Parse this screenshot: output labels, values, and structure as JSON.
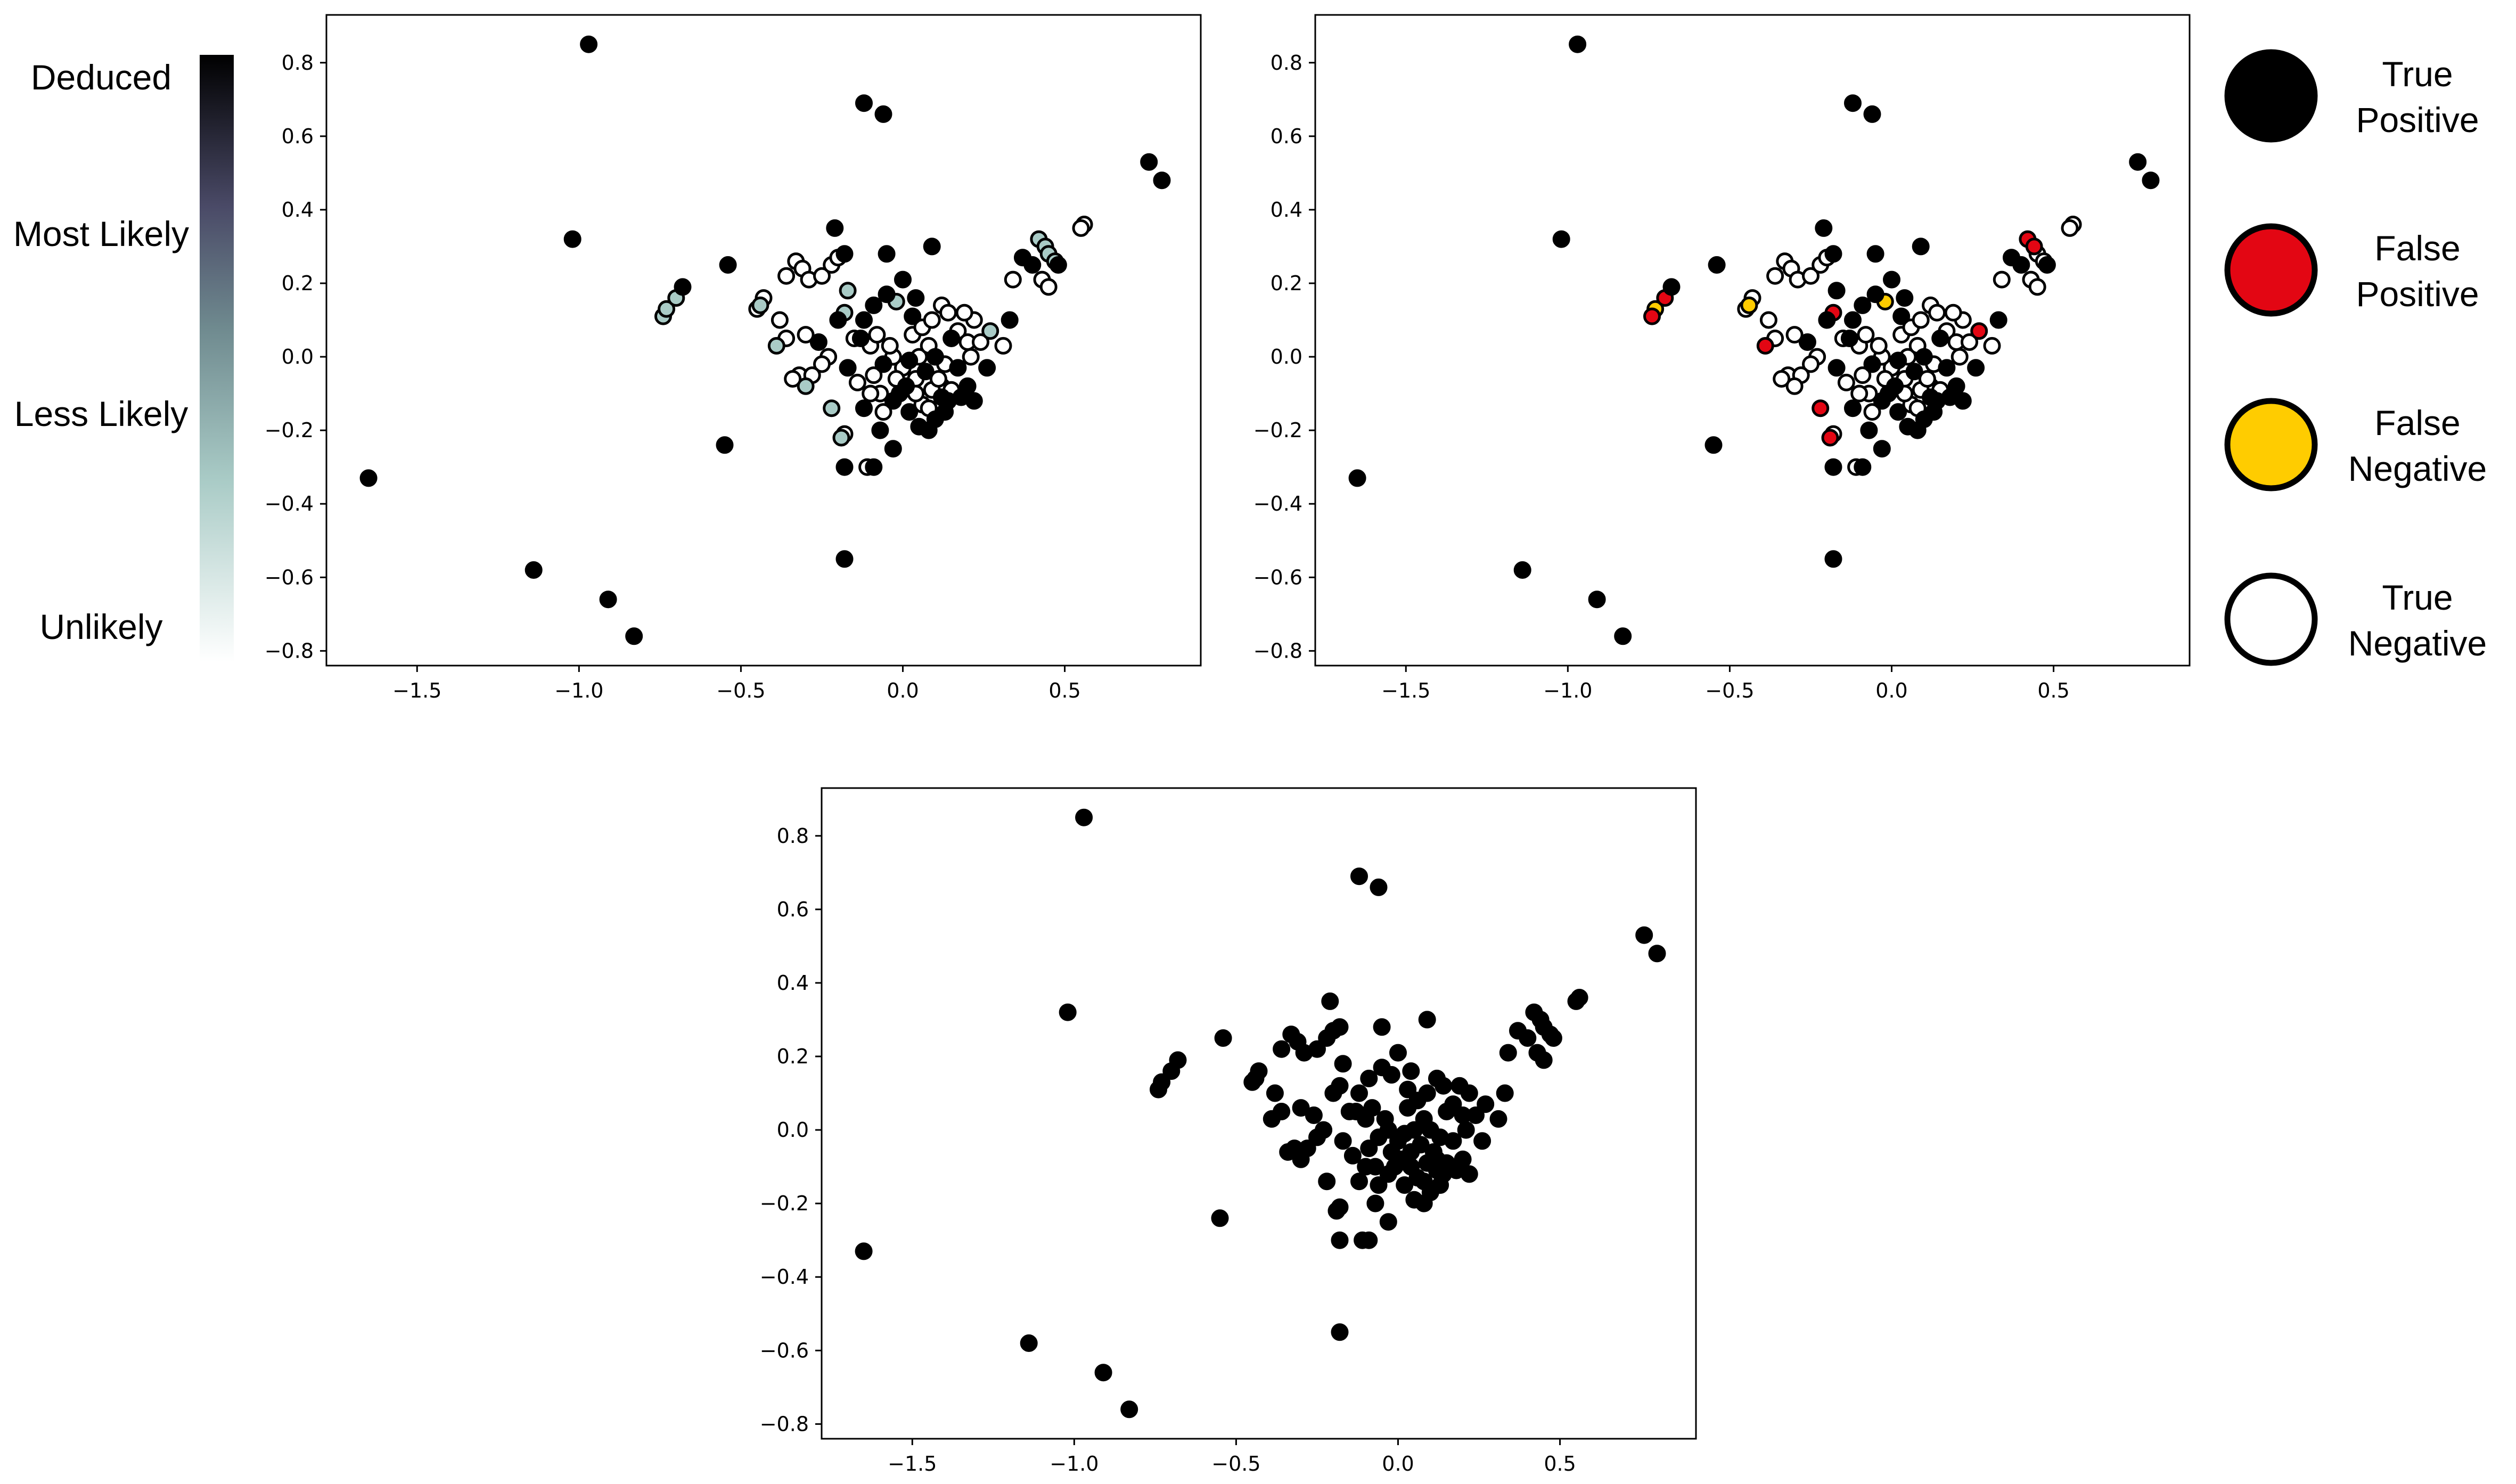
{
  "colors": {
    "true_positive": "#000000",
    "false_positive": "#e30613",
    "false_negative": "#ffcc00",
    "true_negative": "#ffffff",
    "marker_edge": "#000000",
    "colormap": [
      "#ffffff",
      "#a9cbc6",
      "#6f8a8f",
      "#4a4a67",
      "#000000"
    ]
  },
  "colorbar": {
    "labels": [
      "Deduced",
      "Most Likely",
      "Less Likely",
      "Unlikely"
    ]
  },
  "legend": {
    "placement": "right",
    "items": [
      {
        "key": "tp",
        "line1": "True",
        "line2": "Positive",
        "color": "#000000"
      },
      {
        "key": "fp",
        "line1": "False",
        "line2": "Positive",
        "color": "#e30613"
      },
      {
        "key": "fn",
        "line1": "False",
        "line2": "Negative",
        "color": "#ffcc00"
      },
      {
        "key": "tn",
        "line1": "True",
        "line2": "Negative",
        "color": "#ffffff"
      }
    ]
  },
  "chart_data": [
    {
      "type": "scatter",
      "panel": "top-left",
      "title": "",
      "xlabel": "",
      "ylabel": "",
      "xlim": [
        -1.78,
        0.92
      ],
      "ylim": [
        -0.84,
        0.93
      ],
      "xticks": [
        -1.5,
        -1.0,
        -0.5,
        0.0,
        0.5
      ],
      "xtick_labels": [
        "−1.5",
        "−1.0",
        "−0.5",
        "0.0",
        "0.5"
      ],
      "yticks": [
        -0.8,
        -0.6,
        -0.4,
        -0.2,
        0.0,
        0.2,
        0.4,
        0.6,
        0.8
      ],
      "ytick_labels": [
        "−0.8",
        "−0.6",
        "−0.4",
        "−0.2",
        "0.0",
        "0.2",
        "0.4",
        "0.6",
        "0.8"
      ],
      "color_encoding": "likelihood colormap (1 = Deduced, 0 = Unlikely)",
      "grid": false
    },
    {
      "type": "scatter",
      "panel": "top-right",
      "title": "",
      "xlabel": "",
      "ylabel": "",
      "xlim": [
        -1.78,
        0.92
      ],
      "ylim": [
        -0.84,
        0.93
      ],
      "xticks": [
        -1.5,
        -1.0,
        -0.5,
        0.0,
        0.5
      ],
      "xtick_labels": [
        "−1.5",
        "−1.0",
        "−0.5",
        "0.0",
        "0.5"
      ],
      "yticks": [
        -0.8,
        -0.6,
        -0.4,
        -0.2,
        0.0,
        0.2,
        0.4,
        0.6,
        0.8
      ],
      "ytick_labels": [
        "−0.8",
        "−0.6",
        "−0.4",
        "−0.2",
        "0.0",
        "0.2",
        "0.4",
        "0.6",
        "0.8"
      ],
      "color_encoding": "classification: true positive, false positive, false negative, true negative",
      "grid": false
    },
    {
      "type": "scatter",
      "panel": "bottom",
      "title": "",
      "xlabel": "",
      "ylabel": "",
      "xlim": [
        -1.78,
        0.92
      ],
      "ylim": [
        -0.84,
        0.93
      ],
      "xticks": [
        -1.5,
        -1.0,
        -0.5,
        0.0,
        0.5
      ],
      "xtick_labels": [
        "−1.5",
        "−1.0",
        "−0.5",
        "0.0",
        "0.5"
      ],
      "yticks": [
        -0.8,
        -0.6,
        -0.4,
        -0.2,
        0.0,
        0.2,
        0.4,
        0.6,
        0.8
      ],
      "ytick_labels": [
        "−0.8",
        "−0.6",
        "−0.4",
        "−0.2",
        "0.0",
        "0.2",
        "0.4",
        "0.6",
        "0.8"
      ],
      "color_encoding": "all points black",
      "grid": false
    }
  ],
  "points": {
    "columns": [
      "x",
      "y",
      "likelihood",
      "class"
    ],
    "rows": [
      [
        -0.97,
        0.85,
        1.0,
        "tp"
      ],
      [
        -1.02,
        0.32,
        1.0,
        "tp"
      ],
      [
        -1.65,
        -0.33,
        1.0,
        "tp"
      ],
      [
        -1.14,
        -0.58,
        1.0,
        "tp"
      ],
      [
        -0.91,
        -0.66,
        1.0,
        "tp"
      ],
      [
        -0.83,
        -0.76,
        1.0,
        "tp"
      ],
      [
        -0.12,
        0.69,
        1.0,
        "tp"
      ],
      [
        -0.06,
        0.66,
        1.0,
        "tp"
      ],
      [
        0.76,
        0.53,
        1.0,
        "tp"
      ],
      [
        0.8,
        0.48,
        1.0,
        "tp"
      ],
      [
        -0.54,
        0.25,
        1.0,
        "tp"
      ],
      [
        -0.55,
        -0.24,
        1.0,
        "tp"
      ],
      [
        -0.18,
        -0.55,
        1.0,
        "tp"
      ],
      [
        -0.18,
        -0.3,
        1.0,
        "tp"
      ],
      [
        -0.09,
        -0.3,
        1.0,
        "tp"
      ],
      [
        -0.03,
        -0.25,
        1.0,
        "tp"
      ],
      [
        0.56,
        0.36,
        0.0,
        "tn"
      ],
      [
        0.55,
        0.35,
        0.0,
        "tn"
      ],
      [
        -0.74,
        0.11,
        0.3,
        "fp"
      ],
      [
        -0.73,
        0.13,
        0.3,
        "fn"
      ],
      [
        -0.7,
        0.16,
        0.3,
        "fp"
      ],
      [
        -0.68,
        0.19,
        1.0,
        "tp"
      ],
      [
        -0.21,
        0.35,
        1.0,
        "tp"
      ],
      [
        -0.18,
        0.28,
        1.0,
        "tp"
      ],
      [
        -0.05,
        0.28,
        1.0,
        "tp"
      ],
      [
        0.09,
        0.3,
        1.0,
        "tp"
      ],
      [
        0.0,
        0.21,
        1.0,
        "tp"
      ],
      [
        -0.33,
        0.26,
        0.0,
        "tn"
      ],
      [
        -0.31,
        0.24,
        0.0,
        "tn"
      ],
      [
        -0.36,
        0.22,
        0.0,
        "tn"
      ],
      [
        -0.29,
        0.21,
        0.0,
        "tn"
      ],
      [
        -0.25,
        0.22,
        0.0,
        "tn"
      ],
      [
        -0.22,
        0.25,
        0.0,
        "tn"
      ],
      [
        -0.2,
        0.27,
        0.0,
        "tn"
      ],
      [
        -0.43,
        0.16,
        0.0,
        "tn"
      ],
      [
        -0.44,
        0.14,
        0.3,
        "fn"
      ],
      [
        -0.45,
        0.13,
        0.0,
        "tn"
      ],
      [
        -0.38,
        0.1,
        0.0,
        "tn"
      ],
      [
        -0.36,
        0.05,
        0.0,
        "tn"
      ],
      [
        -0.39,
        0.03,
        0.3,
        "fp"
      ],
      [
        -0.3,
        0.06,
        0.0,
        "tn"
      ],
      [
        -0.26,
        0.04,
        1.0,
        "tp"
      ],
      [
        -0.17,
        0.18,
        0.3,
        "tp"
      ],
      [
        -0.18,
        0.12,
        0.3,
        "fp"
      ],
      [
        -0.2,
        0.1,
        1.0,
        "tp"
      ],
      [
        -0.09,
        0.14,
        1.0,
        "tp"
      ],
      [
        -0.05,
        0.17,
        1.0,
        "tp"
      ],
      [
        -0.02,
        0.15,
        0.3,
        "fn"
      ],
      [
        0.04,
        0.16,
        1.0,
        "tp"
      ],
      [
        0.12,
        0.14,
        0.0,
        "tn"
      ],
      [
        0.14,
        0.12,
        0.0,
        "tn"
      ],
      [
        0.03,
        0.11,
        1.0,
        "tp"
      ],
      [
        -0.12,
        0.1,
        1.0,
        "tp"
      ],
      [
        -0.15,
        0.05,
        0.0,
        "tn"
      ],
      [
        -0.23,
        0.0,
        0.0,
        "tn"
      ],
      [
        -0.25,
        -0.02,
        0.0,
        "tn"
      ],
      [
        -0.32,
        -0.05,
        0.0,
        "tn"
      ],
      [
        -0.34,
        -0.06,
        0.0,
        "tn"
      ],
      [
        -0.28,
        -0.05,
        0.0,
        "tn"
      ],
      [
        -0.3,
        -0.08,
        0.3,
        "tn"
      ],
      [
        -0.22,
        -0.14,
        0.3,
        "fp"
      ],
      [
        -0.19,
        -0.22,
        0.3,
        "fp"
      ],
      [
        -0.18,
        -0.21,
        0.0,
        "tn"
      ],
      [
        -0.11,
        -0.3,
        0.0,
        "tn"
      ],
      [
        -0.07,
        -0.2,
        1.0,
        "tp"
      ],
      [
        0.05,
        -0.19,
        1.0,
        "tp"
      ],
      [
        0.08,
        -0.2,
        1.0,
        "tp"
      ],
      [
        -0.01,
        -0.1,
        1.0,
        "tp"
      ],
      [
        0.02,
        -0.15,
        1.0,
        "tp"
      ],
      [
        0.06,
        -0.13,
        0.0,
        "tn"
      ],
      [
        0.1,
        -0.17,
        1.0,
        "tp"
      ],
      [
        0.13,
        -0.15,
        1.0,
        "tp"
      ],
      [
        0.14,
        -0.12,
        1.0,
        "tp"
      ],
      [
        0.12,
        -0.08,
        0.0,
        "tn"
      ],
      [
        0.09,
        -0.09,
        0.0,
        "tn"
      ],
      [
        0.04,
        -0.06,
        0.0,
        "tn"
      ],
      [
        0.0,
        -0.03,
        0.0,
        "tn"
      ],
      [
        -0.03,
        0.0,
        0.0,
        "tn"
      ],
      [
        -0.06,
        -0.02,
        1.0,
        "tp"
      ],
      [
        -0.09,
        -0.05,
        0.0,
        "tn"
      ],
      [
        -0.07,
        -0.1,
        0.0,
        "tn"
      ],
      [
        0.01,
        -0.08,
        1.0,
        "tp"
      ],
      [
        0.05,
        0.0,
        0.0,
        "tn"
      ],
      [
        0.08,
        0.03,
        0.0,
        "tn"
      ],
      [
        0.1,
        0.0,
        1.0,
        "tp"
      ],
      [
        0.15,
        0.05,
        1.0,
        "tp"
      ],
      [
        0.17,
        0.07,
        0.0,
        "tn"
      ],
      [
        0.2,
        0.04,
        0.0,
        "tn"
      ],
      [
        0.22,
        0.1,
        0.0,
        "tn"
      ],
      [
        0.19,
        0.12,
        0.0,
        "tn"
      ],
      [
        0.21,
        0.0,
        0.0,
        "tn"
      ],
      [
        0.17,
        -0.03,
        1.0,
        "tp"
      ],
      [
        0.2,
        -0.08,
        1.0,
        "tp"
      ],
      [
        0.22,
        -0.12,
        1.0,
        "tp"
      ],
      [
        0.26,
        -0.03,
        1.0,
        "tp"
      ],
      [
        0.27,
        0.07,
        0.3,
        "fp"
      ],
      [
        0.24,
        0.04,
        0.0,
        "tn"
      ],
      [
        0.31,
        0.03,
        0.0,
        "tn"
      ],
      [
        0.33,
        0.1,
        1.0,
        "tp"
      ],
      [
        0.34,
        0.21,
        0.0,
        "tn"
      ],
      [
        0.37,
        0.27,
        1.0,
        "tp"
      ],
      [
        0.4,
        0.25,
        1.0,
        "tp"
      ],
      [
        0.42,
        0.32,
        0.3,
        "fp"
      ],
      [
        0.44,
        0.3,
        0.3,
        "fp"
      ],
      [
        0.45,
        0.28,
        0.3,
        "tn"
      ],
      [
        0.47,
        0.26,
        0.3,
        "tn"
      ],
      [
        0.48,
        0.25,
        1.0,
        "tp"
      ],
      [
        0.43,
        0.21,
        0.0,
        "tn"
      ],
      [
        0.45,
        0.19,
        0.0,
        "tn"
      ],
      [
        -0.13,
        0.05,
        1.0,
        "tp"
      ],
      [
        -0.1,
        0.03,
        0.0,
        "tn"
      ],
      [
        -0.17,
        -0.03,
        1.0,
        "tp"
      ],
      [
        -0.14,
        -0.07,
        0.0,
        "tn"
      ],
      [
        -0.12,
        -0.14,
        1.0,
        "tp"
      ],
      [
        -0.06,
        -0.15,
        0.0,
        "tn"
      ],
      [
        -0.03,
        -0.12,
        1.0,
        "tp"
      ],
      [
        0.07,
        -0.04,
        1.0,
        "tp"
      ],
      [
        0.11,
        -0.06,
        0.0,
        "tn"
      ],
      [
        0.13,
        -0.02,
        0.0,
        "tn"
      ],
      [
        0.03,
        0.06,
        0.0,
        "tn"
      ],
      [
        -0.08,
        0.06,
        0.0,
        "tn"
      ],
      [
        -0.04,
        0.03,
        0.0,
        "tn"
      ],
      [
        0.06,
        0.08,
        0.0,
        "tn"
      ],
      [
        0.09,
        0.1,
        0.0,
        "tn"
      ],
      [
        0.02,
        -0.01,
        1.0,
        "tp"
      ],
      [
        -0.02,
        -0.06,
        0.0,
        "tn"
      ],
      [
        0.15,
        -0.09,
        0.0,
        "tn"
      ],
      [
        0.18,
        -0.11,
        1.0,
        "tp"
      ],
      [
        0.12,
        -0.11,
        1.0,
        "tp"
      ],
      [
        0.04,
        -0.1,
        0.0,
        "tn"
      ],
      [
        -0.1,
        -0.1,
        0.0,
        "tn"
      ],
      [
        0.08,
        -0.14,
        0.0,
        "tn"
      ]
    ]
  }
}
